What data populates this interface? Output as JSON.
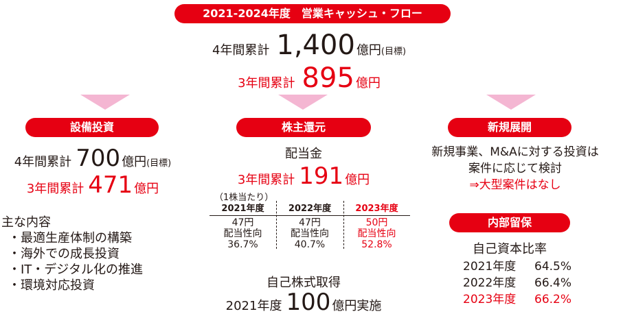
{
  "header": {
    "title": "2021-2024年度　営業キャッシュ・フロー",
    "four_year_prefix": "4年間累計",
    "four_year_value": "1,400",
    "four_year_unit": "億円",
    "four_year_note": "(目標)",
    "three_year_prefix": "3年間累計",
    "three_year_value": "895",
    "three_year_unit": "億円"
  },
  "capex": {
    "title": "設備投資",
    "four_year_prefix": "4年間累計",
    "four_year_value": "700",
    "four_year_unit": "億円",
    "four_year_note": "(目標)",
    "three_year_prefix": "3年間累計",
    "three_year_value": "471",
    "three_year_unit": "億円",
    "contents_heading": "主な内容",
    "contents": [
      "・最適生産体制の構築",
      "・海外での成長投資",
      "・IT・デジタル化の推進",
      "・環境対応投資"
    ]
  },
  "shareholder": {
    "title": "株主還元",
    "dividend_label": "配当金",
    "three_year_prefix": "3年間累計",
    "three_year_value": "191",
    "three_year_unit": "億円",
    "per_share_note": "（1株当たり）",
    "years": [
      {
        "year": "2021年度",
        "amount": "47円",
        "ratio_label": "配当性向",
        "ratio": "36.7%"
      },
      {
        "year": "2022年度",
        "amount": "47円",
        "ratio_label": "配当性向",
        "ratio": "40.7%"
      },
      {
        "year": "2023年度",
        "amount": "50円",
        "ratio_label": "配当性向",
        "ratio": "52.8%"
      }
    ],
    "buyback_label": "自己株式取得",
    "buyback_year": "2021年度",
    "buyback_value": "100",
    "buyback_unit": "億円実施"
  },
  "new_business": {
    "title": "新規展開",
    "line1": "新規事業、M&Aに対する投資は",
    "line2": "案件に応じて検討",
    "line3": "⇒大型案件はなし"
  },
  "retained": {
    "title": "内部留保",
    "ratio_label": "自己資本比率",
    "rows": [
      {
        "year": "2021年度",
        "value": "64.5%"
      },
      {
        "year": "2022年度",
        "value": "66.4%"
      },
      {
        "year": "2023年度",
        "value": "66.2%"
      }
    ]
  },
  "colors": {
    "accent": "#e60012",
    "arrow": "#f4b6d2",
    "text": "#231815"
  }
}
